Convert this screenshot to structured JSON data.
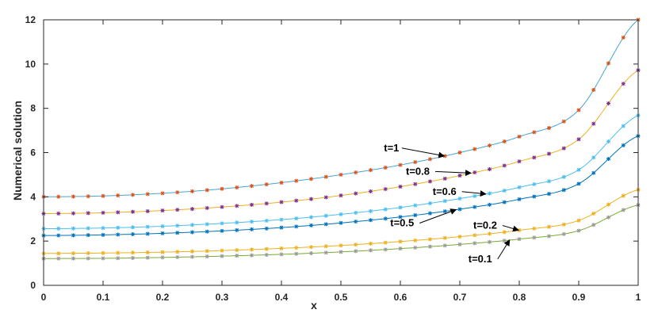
{
  "chart_data": {
    "type": "line",
    "xlabel": "x",
    "ylabel": "Numerical solution",
    "xlim": [
      0,
      1
    ],
    "ylim": [
      0,
      12
    ],
    "grid": false,
    "box": true,
    "x_ticks": [
      "0",
      "0.1",
      "0.2",
      "0.3",
      "0.4",
      "0.5",
      "0.6",
      "0.7",
      "0.8",
      "0.9",
      "1"
    ],
    "y_ticks": [
      "0",
      "2",
      "4",
      "6",
      "8",
      "10",
      "12"
    ],
    "x": [
      0,
      0.1,
      0.2,
      0.3,
      0.4,
      0.5,
      0.6,
      0.7,
      0.8,
      0.9,
      1
    ],
    "series": [
      {
        "name": "t=1",
        "values": [
          4.0,
          4.04,
          4.16,
          4.36,
          4.64,
          5.0,
          5.44,
          6.0,
          6.72,
          7.92,
          12.0
        ],
        "line_color": "#4aa3d6",
        "marker_color": "#d95319"
      },
      {
        "name": "t=0.8",
        "values": [
          3.24,
          3.28,
          3.38,
          3.54,
          3.76,
          4.06,
          4.46,
          4.96,
          5.6,
          6.6,
          9.72
        ],
        "line_color": "#edb120",
        "marker_color": "#7e2f8e"
      },
      {
        "name": "t=0.6",
        "values": [
          2.56,
          2.59,
          2.67,
          2.8,
          2.97,
          3.21,
          3.52,
          3.92,
          4.43,
          5.22,
          7.68
        ],
        "line_color": "#4dbeee",
        "marker_color": "#4dbeee"
      },
      {
        "name": "t=0.5",
        "values": [
          2.25,
          2.28,
          2.35,
          2.46,
          2.61,
          2.82,
          3.09,
          3.44,
          3.89,
          4.59,
          6.75
        ],
        "line_color": "#0072bd",
        "marker_color": "#0072bd"
      },
      {
        "name": "t=0.2",
        "values": [
          1.44,
          1.46,
          1.5,
          1.57,
          1.67,
          1.8,
          1.98,
          2.2,
          2.49,
          2.93,
          4.32
        ],
        "line_color": "#edb120",
        "marker_color": "#edb120"
      },
      {
        "name": "t=0.1",
        "values": [
          1.21,
          1.22,
          1.26,
          1.32,
          1.4,
          1.51,
          1.66,
          1.85,
          2.09,
          2.47,
          3.63
        ],
        "line_color": "#77ac30",
        "marker_color": "#999999"
      }
    ],
    "annotations": [
      {
        "text": "t=1",
        "series": "t=1",
        "arrow_x": 0.675
      },
      {
        "text": "t=0.8",
        "series": "t=0.8",
        "arrow_x": 0.72
      },
      {
        "text": "t=0.6",
        "series": "t=0.6",
        "arrow_x": 0.745
      },
      {
        "text": "t=0.5",
        "series": "t=0.5",
        "arrow_x": 0.695
      },
      {
        "text": "t=0.2",
        "series": "t=0.2",
        "arrow_x": 0.8
      },
      {
        "text": "t=0.1",
        "series": "t=0.1",
        "arrow_x": 0.785
      }
    ]
  }
}
